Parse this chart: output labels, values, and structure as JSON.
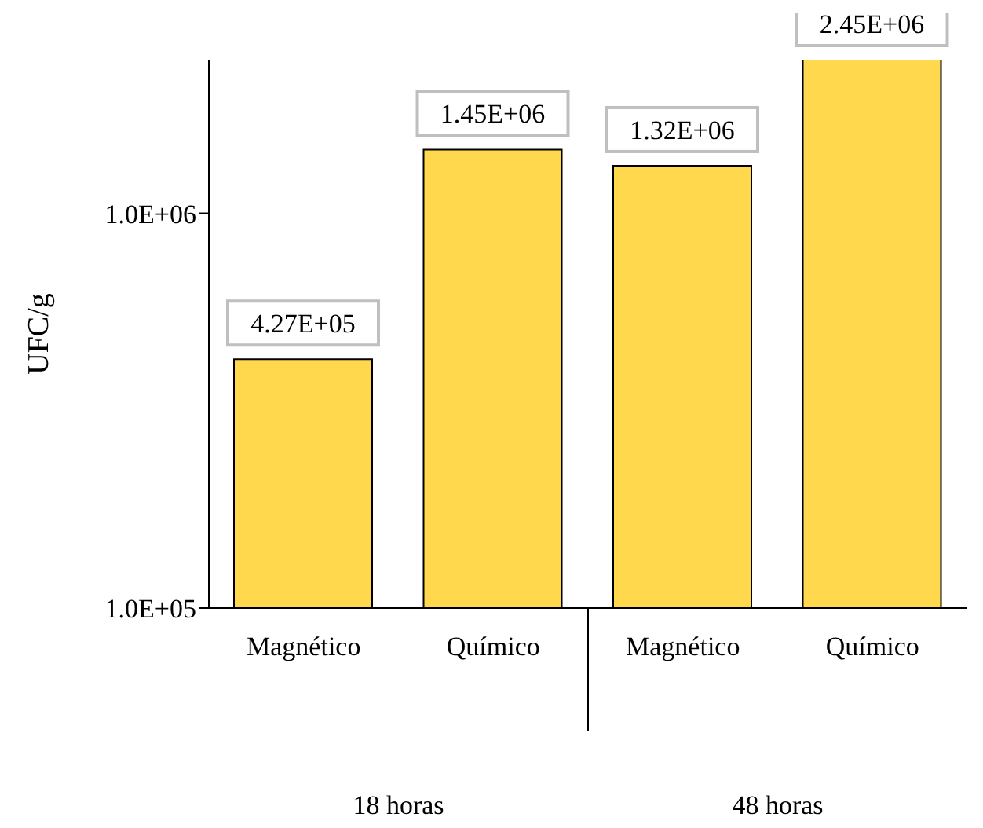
{
  "chart_data": {
    "type": "bar",
    "ylabel": "UFC/g",
    "categories": [
      "Magnético",
      "Químico",
      "Magnético",
      "Químico"
    ],
    "values": [
      427000,
      1450000,
      1320000,
      2450000
    ],
    "value_labels": [
      "4.27E+05",
      "1.45E+06",
      "1.32E+06",
      "2.45E+06"
    ],
    "color": "#ffd84d",
    "log": "y",
    "ylim": [
      100000,
      2450000
    ],
    "yticks": [
      {
        "value": 100000,
        "label": "1.0E+05"
      },
      {
        "value": 1000000,
        "label": "1.0E+06"
      }
    ],
    "annotations": [
      "18 horas",
      "48 horas"
    ],
    "grid": false,
    "legend": false
  }
}
